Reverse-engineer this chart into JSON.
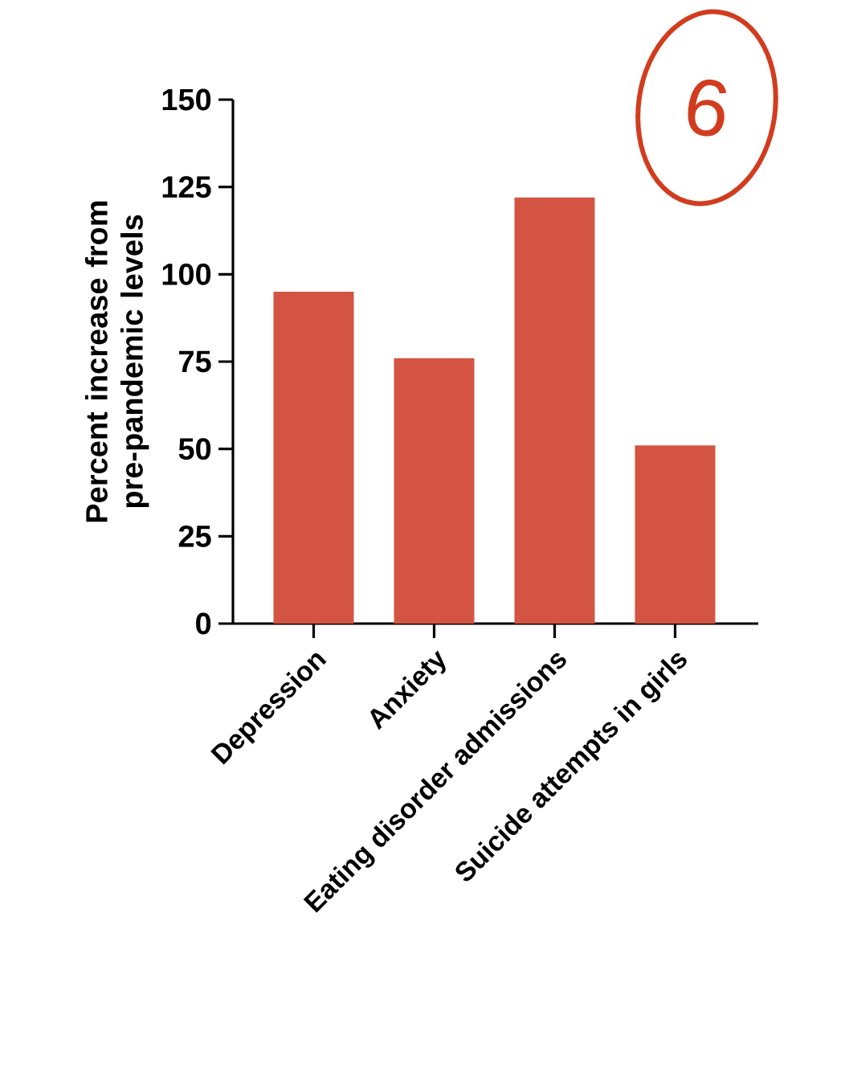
{
  "chart_data": {
    "type": "bar",
    "ylabel": "Percent increase from pre-pandemic levels",
    "categories": [
      "Depression",
      "Anxiety",
      "Eating disorder admissions",
      "Suicide attempts in girls"
    ],
    "values": [
      95,
      76,
      122,
      51
    ],
    "color": "#d35443",
    "ylim": [
      0,
      150
    ],
    "yticks": [
      0,
      25,
      50,
      75,
      100,
      125,
      150
    ],
    "grid": false,
    "annotations": [
      "6"
    ]
  }
}
